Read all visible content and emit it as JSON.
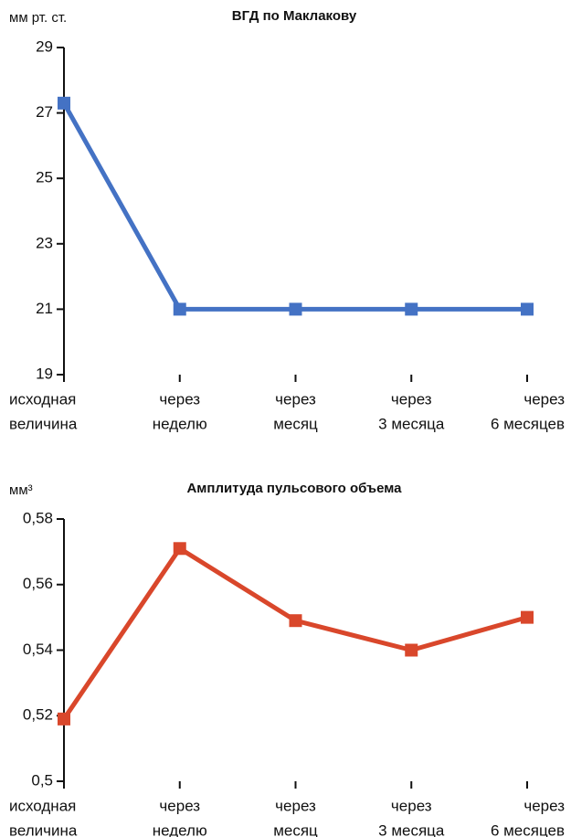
{
  "chart_data": [
    {
      "type": "line",
      "title": "ВГД по Маклакову",
      "y_label": "мм рт. ст.",
      "categories": [
        [
          "исходная",
          "величина"
        ],
        [
          "через",
          "неделю"
        ],
        [
          "через",
          "месяц"
        ],
        [
          "через",
          "3 месяца"
        ],
        [
          "через",
          "6 месяцев"
        ]
      ],
      "series": [
        {
          "name": "ВГД по Маклакову",
          "color": "#4472c4",
          "values": [
            27.3,
            21,
            21,
            21,
            21
          ]
        }
      ],
      "ylim": [
        19,
        29
      ],
      "yticks": [
        19,
        21,
        23,
        25,
        27,
        29
      ],
      "grid": false
    },
    {
      "type": "line",
      "title": "Амплитуда пульсового объема",
      "y_label": "мм³",
      "categories": [
        [
          "исходная",
          "величина"
        ],
        [
          "через",
          "неделю"
        ],
        [
          "через",
          "месяц"
        ],
        [
          "через",
          "3 месяца"
        ],
        [
          "через",
          "6 месяцев"
        ]
      ],
      "series": [
        {
          "name": "Амплитуда пульсового объема",
          "color": "#d9472b",
          "values": [
            0.519,
            0.571,
            0.549,
            0.54,
            0.55
          ]
        }
      ],
      "ylim": [
        0.5,
        0.58
      ],
      "yticks": [
        {
          "value": 0.5,
          "label": "0,5"
        },
        {
          "value": 0.52,
          "label": "0,52"
        },
        {
          "value": 0.54,
          "label": "0,54"
        },
        {
          "value": 0.56,
          "label": "0,56"
        },
        {
          "value": 0.58,
          "label": "0,58"
        }
      ],
      "grid": false
    }
  ]
}
